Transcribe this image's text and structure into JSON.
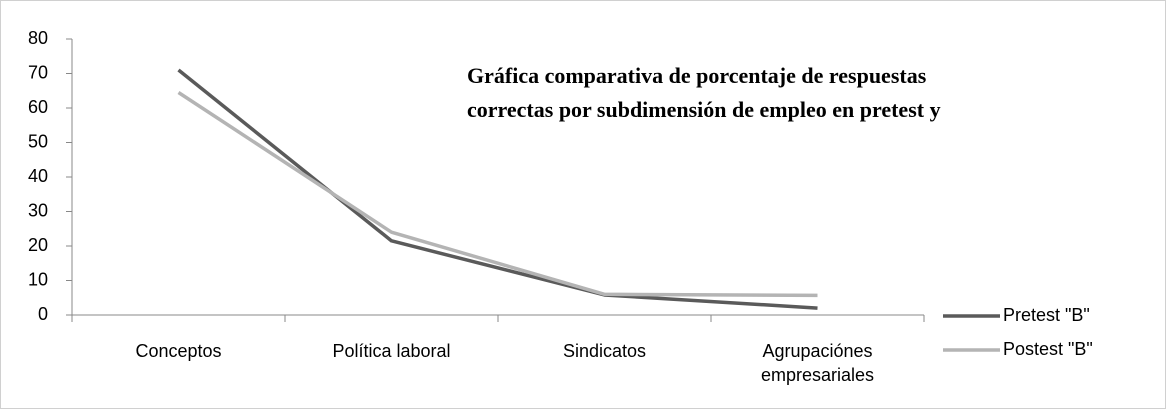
{
  "chart_data": {
    "type": "line",
    "title": [
      "Gráfica comparativa de porcentaje de respuestas",
      "correctas por subdimensión de empleo en  pretest y"
    ],
    "categories": [
      "Conceptos",
      "Política laboral",
      "Sindicatos",
      "Agrupaciónes empresariales"
    ],
    "series": [
      {
        "name": "Pretest \"B\"",
        "color": "#5a5a5a",
        "values": [
          71,
          21.5,
          5.8,
          2
        ]
      },
      {
        "name": "Postest \"B\"",
        "color": "#b4b4b4",
        "values": [
          64.5,
          24,
          6,
          5.7
        ]
      }
    ],
    "ylim": [
      0,
      80
    ],
    "yticks": [
      0,
      10,
      20,
      30,
      40,
      50,
      60,
      70,
      80
    ],
    "grid": false,
    "legend": "right"
  }
}
